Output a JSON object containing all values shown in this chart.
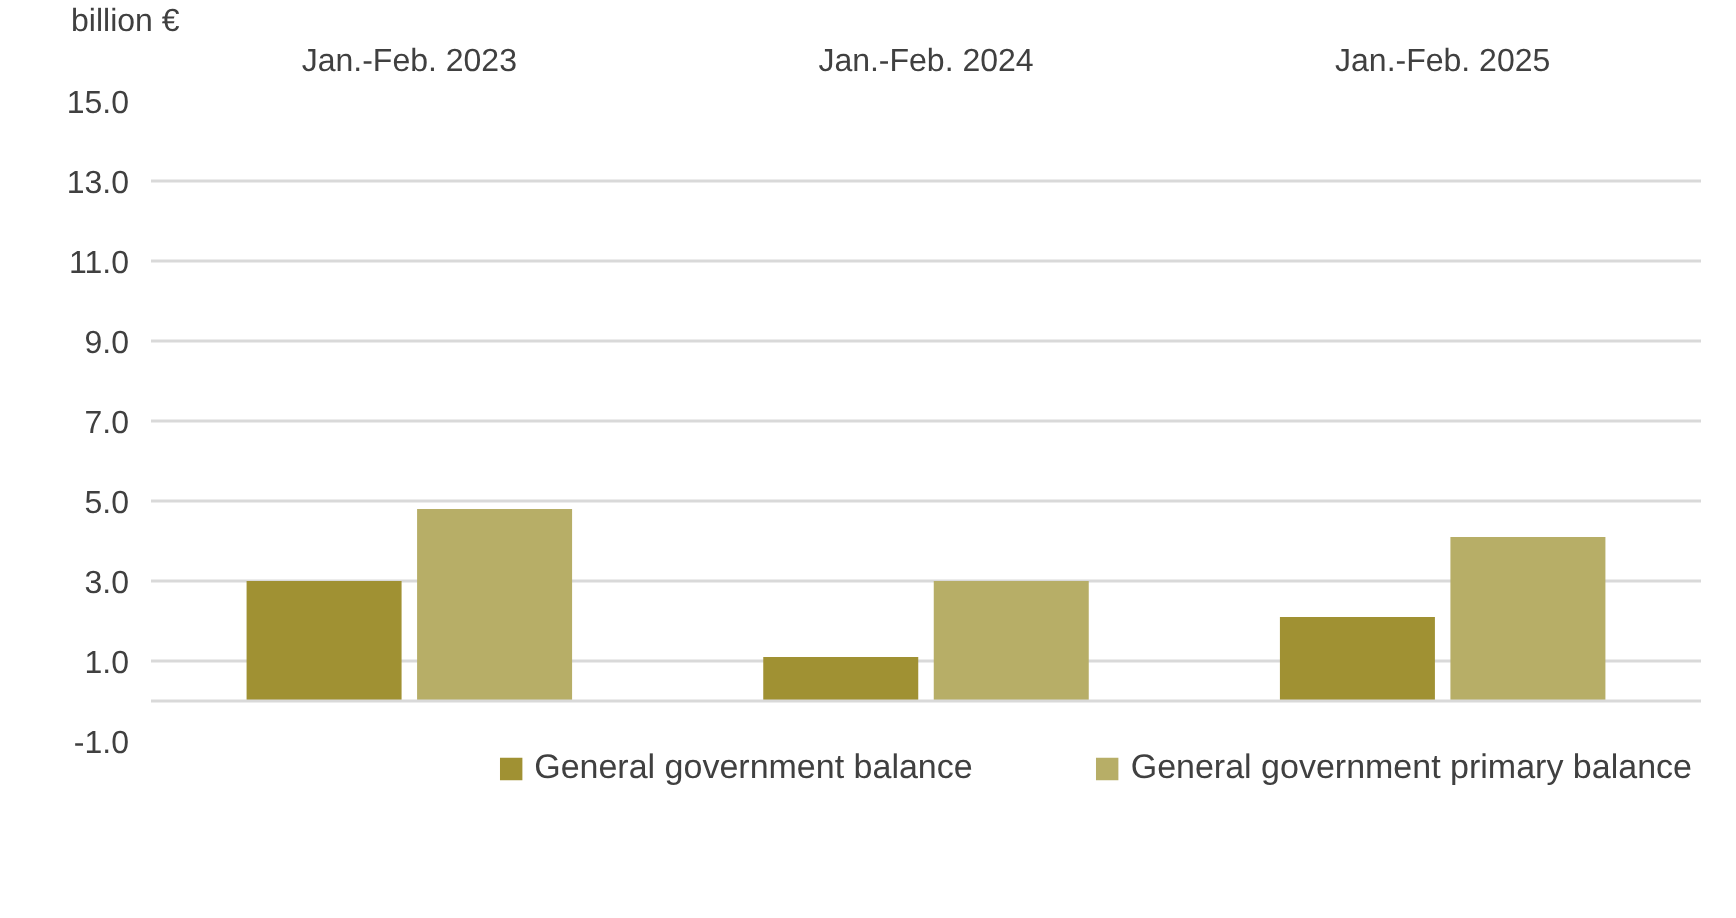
{
  "chart_data": {
    "type": "bar",
    "ylabel": "billion €",
    "categories": [
      "Jan.-Feb. 2023",
      "Jan.-Feb. 2024",
      "Jan.-Feb. 2025"
    ],
    "series": [
      {
        "name": "General government balance",
        "color": "#a09133",
        "values": [
          3.0,
          1.1,
          2.1
        ]
      },
      {
        "name": "General government primary balance",
        "color": "#b7ae67",
        "values": [
          4.8,
          3.0,
          4.1
        ]
      }
    ],
    "ylim": [
      -1.0,
      15.0
    ],
    "yticks": [
      {
        "value": -1,
        "label": "-1.0"
      },
      {
        "value": 1,
        "label": "1.0"
      },
      {
        "value": 3,
        "label": "3.0"
      },
      {
        "value": 5,
        "label": "5.0"
      },
      {
        "value": 7,
        "label": "7.0"
      },
      {
        "value": 9,
        "label": "9.0"
      },
      {
        "value": 11,
        "label": "11.0"
      },
      {
        "value": 13,
        "label": "13.0"
      },
      {
        "value": 15,
        "label": "15.0"
      }
    ],
    "grid": "y",
    "legend": "bottom"
  }
}
